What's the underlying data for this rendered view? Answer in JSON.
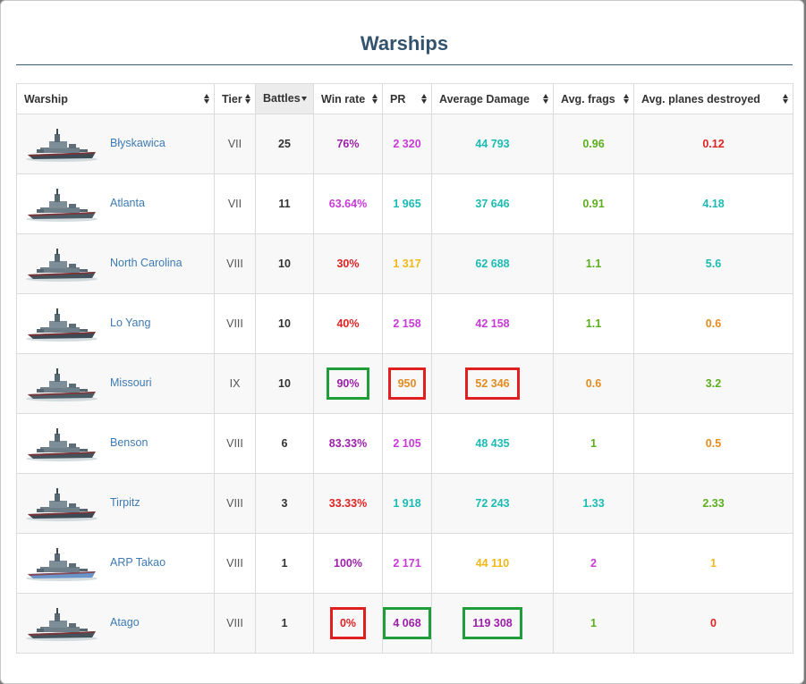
{
  "title": "Warships",
  "colors": {
    "purple": "#9b1fa8",
    "magenta": "#c63bd6",
    "teal": "#1bbbb4",
    "green": "#5cae1e",
    "red": "#e02222",
    "orange": "#e48b1e",
    "yellow": "#f0b81a",
    "title": "#33536d",
    "link": "#3d7ab4",
    "highlight_red": "#e02020",
    "highlight_green": "#1f9d3a"
  },
  "columns": [
    {
      "label": "Warship",
      "sort": "both"
    },
    {
      "label": "Tier",
      "sort": "both"
    },
    {
      "label": "Battles",
      "sort": "desc"
    },
    {
      "label": "Win rate",
      "sort": "both"
    },
    {
      "label": "PR",
      "sort": "both"
    },
    {
      "label": "Average Damage",
      "sort": "both"
    },
    {
      "label": "Avg. frags",
      "sort": "both"
    },
    {
      "label": "Avg. planes destroyed",
      "sort": "both"
    }
  ],
  "rows": [
    {
      "name": "Błyskawica",
      "tier": "VII",
      "battles": "25",
      "winrate": {
        "v": "76%",
        "c": "purple"
      },
      "pr": {
        "v": "2 320",
        "c": "magenta"
      },
      "dmg": {
        "v": "44 793",
        "c": "teal"
      },
      "frags": {
        "v": "0.96",
        "c": "green"
      },
      "planes": {
        "v": "0.12",
        "c": "red"
      }
    },
    {
      "name": "Atlanta",
      "tier": "VII",
      "battles": "11",
      "winrate": {
        "v": "63.64%",
        "c": "magenta"
      },
      "pr": {
        "v": "1 965",
        "c": "teal"
      },
      "dmg": {
        "v": "37 646",
        "c": "teal"
      },
      "frags": {
        "v": "0.91",
        "c": "green"
      },
      "planes": {
        "v": "4.18",
        "c": "teal"
      }
    },
    {
      "name": "North Carolina",
      "tier": "VIII",
      "battles": "10",
      "winrate": {
        "v": "30%",
        "c": "red"
      },
      "pr": {
        "v": "1 317",
        "c": "yellow"
      },
      "dmg": {
        "v": "62 688",
        "c": "teal"
      },
      "frags": {
        "v": "1.1",
        "c": "green"
      },
      "planes": {
        "v": "5.6",
        "c": "teal"
      }
    },
    {
      "name": "Lo Yang",
      "tier": "VIII",
      "battles": "10",
      "winrate": {
        "v": "40%",
        "c": "red"
      },
      "pr": {
        "v": "2 158",
        "c": "magenta"
      },
      "dmg": {
        "v": "42 158",
        "c": "magenta"
      },
      "frags": {
        "v": "1.1",
        "c": "green"
      },
      "planes": {
        "v": "0.6",
        "c": "orange"
      }
    },
    {
      "name": "Missouri",
      "tier": "IX",
      "battles": "10",
      "winrate": {
        "v": "90%",
        "c": "purple",
        "box": "green"
      },
      "pr": {
        "v": "950",
        "c": "orange",
        "box": "red"
      },
      "dmg": {
        "v": "52 346",
        "c": "orange",
        "box": "red"
      },
      "frags": {
        "v": "0.6",
        "c": "orange"
      },
      "planes": {
        "v": "3.2",
        "c": "green"
      }
    },
    {
      "name": "Benson",
      "tier": "VIII",
      "battles": "6",
      "winrate": {
        "v": "83.33%",
        "c": "purple"
      },
      "pr": {
        "v": "2 105",
        "c": "magenta"
      },
      "dmg": {
        "v": "48 435",
        "c": "teal"
      },
      "frags": {
        "v": "1",
        "c": "green"
      },
      "planes": {
        "v": "0.5",
        "c": "orange"
      }
    },
    {
      "name": "Tirpitz",
      "tier": "VIII",
      "battles": "3",
      "winrate": {
        "v": "33.33%",
        "c": "red"
      },
      "pr": {
        "v": "1 918",
        "c": "teal"
      },
      "dmg": {
        "v": "72 243",
        "c": "teal"
      },
      "frags": {
        "v": "1.33",
        "c": "teal"
      },
      "planes": {
        "v": "2.33",
        "c": "green"
      }
    },
    {
      "name": "ARP Takao",
      "tier": "VIII",
      "battles": "1",
      "winrate": {
        "v": "100%",
        "c": "purple"
      },
      "pr": {
        "v": "2 171",
        "c": "magenta"
      },
      "dmg": {
        "v": "44 110",
        "c": "yellow"
      },
      "frags": {
        "v": "2",
        "c": "magenta"
      },
      "planes": {
        "v": "1",
        "c": "yellow"
      }
    },
    {
      "name": "Atago",
      "tier": "VIII",
      "battles": "1",
      "winrate": {
        "v": "0%",
        "c": "red",
        "box": "red"
      },
      "pr": {
        "v": "4 068",
        "c": "purple",
        "box": "green"
      },
      "dmg": {
        "v": "119 308",
        "c": "purple",
        "box": "green"
      },
      "frags": {
        "v": "1",
        "c": "green"
      },
      "planes": {
        "v": "0",
        "c": "red"
      }
    }
  ]
}
